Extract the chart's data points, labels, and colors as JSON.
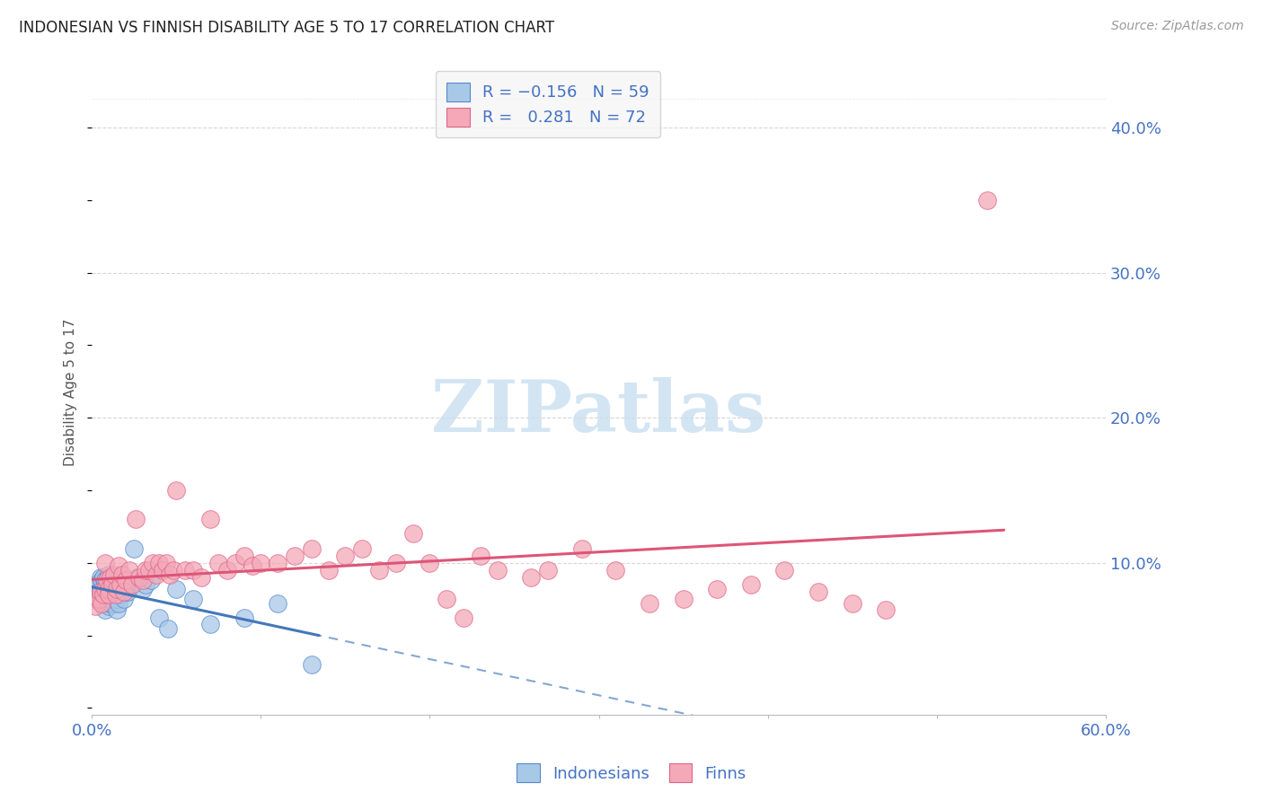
{
  "title": "INDONESIAN VS FINNISH DISABILITY AGE 5 TO 17 CORRELATION CHART",
  "source": "Source: ZipAtlas.com",
  "ylabel": "Disability Age 5 to 17",
  "xlim": [
    0.0,
    0.6
  ],
  "ylim": [
    -0.005,
    0.44
  ],
  "blue_R": -0.156,
  "blue_N": 59,
  "pink_R": 0.281,
  "pink_N": 72,
  "blue_color": "#A8C8E8",
  "pink_color": "#F4A8B8",
  "blue_edge_color": "#5588CC",
  "pink_edge_color": "#DD6688",
  "blue_line_color": "#4477BB",
  "pink_line_color": "#DD5577",
  "bg_color": "#FFFFFF",
  "grid_color": "#CCCCCC",
  "axis_label_color": "#4472C4",
  "blue_scatter_x": [
    0.002,
    0.003,
    0.004,
    0.004,
    0.005,
    0.005,
    0.005,
    0.006,
    0.006,
    0.006,
    0.007,
    0.007,
    0.007,
    0.007,
    0.008,
    0.008,
    0.008,
    0.008,
    0.009,
    0.009,
    0.009,
    0.01,
    0.01,
    0.01,
    0.01,
    0.011,
    0.011,
    0.011,
    0.012,
    0.012,
    0.012,
    0.013,
    0.013,
    0.014,
    0.014,
    0.015,
    0.015,
    0.015,
    0.016,
    0.016,
    0.017,
    0.018,
    0.019,
    0.02,
    0.021,
    0.022,
    0.025,
    0.027,
    0.03,
    0.032,
    0.035,
    0.04,
    0.045,
    0.05,
    0.06,
    0.07,
    0.09,
    0.11,
    0.13
  ],
  "blue_scatter_y": [
    0.075,
    0.082,
    0.08,
    0.086,
    0.078,
    0.082,
    0.09,
    0.075,
    0.08,
    0.088,
    0.072,
    0.078,
    0.082,
    0.09,
    0.068,
    0.075,
    0.08,
    0.088,
    0.072,
    0.078,
    0.085,
    0.07,
    0.076,
    0.082,
    0.092,
    0.072,
    0.078,
    0.085,
    0.075,
    0.082,
    0.09,
    0.072,
    0.08,
    0.075,
    0.085,
    0.068,
    0.075,
    0.088,
    0.072,
    0.082,
    0.078,
    0.082,
    0.075,
    0.082,
    0.08,
    0.085,
    0.11,
    0.09,
    0.082,
    0.085,
    0.088,
    0.062,
    0.055,
    0.082,
    0.075,
    0.058,
    0.062,
    0.072,
    0.03
  ],
  "pink_scatter_x": [
    0.002,
    0.004,
    0.005,
    0.006,
    0.007,
    0.008,
    0.008,
    0.009,
    0.01,
    0.01,
    0.011,
    0.012,
    0.013,
    0.014,
    0.015,
    0.016,
    0.017,
    0.018,
    0.019,
    0.02,
    0.022,
    0.024,
    0.026,
    0.028,
    0.03,
    0.032,
    0.034,
    0.036,
    0.038,
    0.04,
    0.042,
    0.044,
    0.046,
    0.048,
    0.05,
    0.055,
    0.06,
    0.065,
    0.07,
    0.075,
    0.08,
    0.085,
    0.09,
    0.095,
    0.1,
    0.11,
    0.12,
    0.13,
    0.14,
    0.15,
    0.16,
    0.17,
    0.18,
    0.19,
    0.2,
    0.21,
    0.22,
    0.23,
    0.24,
    0.26,
    0.27,
    0.29,
    0.31,
    0.33,
    0.35,
    0.37,
    0.39,
    0.41,
    0.43,
    0.45,
    0.47,
    0.53
  ],
  "pink_scatter_y": [
    0.07,
    0.075,
    0.08,
    0.072,
    0.078,
    0.082,
    0.1,
    0.088,
    0.082,
    0.078,
    0.09,
    0.085,
    0.092,
    0.078,
    0.082,
    0.098,
    0.085,
    0.092,
    0.08,
    0.088,
    0.095,
    0.085,
    0.13,
    0.09,
    0.088,
    0.095,
    0.095,
    0.1,
    0.092,
    0.1,
    0.095,
    0.1,
    0.092,
    0.095,
    0.15,
    0.095,
    0.095,
    0.09,
    0.13,
    0.1,
    0.095,
    0.1,
    0.105,
    0.098,
    0.1,
    0.1,
    0.105,
    0.11,
    0.095,
    0.105,
    0.11,
    0.095,
    0.1,
    0.12,
    0.1,
    0.075,
    0.062,
    0.105,
    0.095,
    0.09,
    0.095,
    0.11,
    0.095,
    0.072,
    0.075,
    0.082,
    0.085,
    0.095,
    0.08,
    0.072,
    0.068,
    0.35
  ],
  "watermark_text": "ZIPatlas",
  "watermark_color": "#C8DFF0",
  "legend_facecolor": "#F5F5F5",
  "legend_edgecolor": "#CCCCCC"
}
